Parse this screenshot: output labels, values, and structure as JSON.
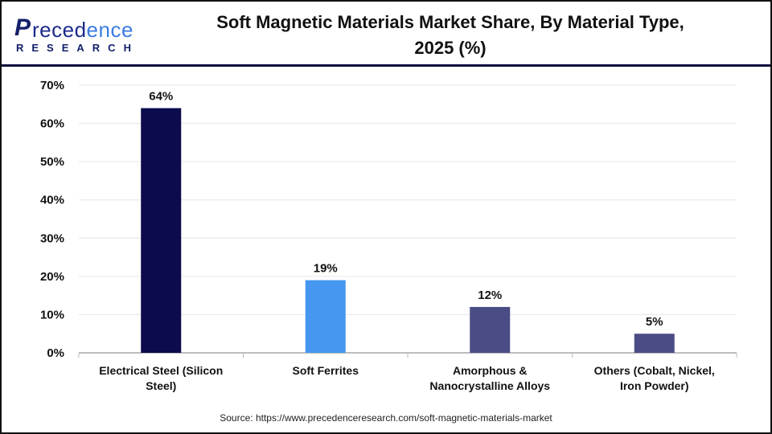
{
  "logo": {
    "text": "Precedence",
    "subtext": "RESEARCH"
  },
  "title_line1": "Soft Magnetic Materials Market Share, By Material Type,",
  "title_line2": "2025 (%)",
  "source": "Source: https://www.precedenceresearch.com/soft-magnetic-materials-market",
  "chart_data": {
    "type": "bar",
    "title": "Soft Magnetic Materials Market Share, By Material Type, 2025 (%)",
    "categories": [
      [
        "Electrical Steel (Silicon",
        "Steel)"
      ],
      [
        "Soft Ferrites"
      ],
      [
        "Amorphous &",
        "Nanocrystalline Alloys"
      ],
      [
        "Others (Cobalt, Nickel,",
        "Iron Powder)"
      ]
    ],
    "values": [
      64,
      19,
      12,
      5
    ],
    "data_labels": [
      "64%",
      "19%",
      "12%",
      "5%"
    ],
    "colors": [
      "#0b0b4d",
      "#4597f0",
      "#4a4d85",
      "#4a4d85"
    ],
    "ylim": [
      0,
      70
    ],
    "yticks": [
      "0%",
      "10%",
      "20%",
      "30%",
      "40%",
      "50%",
      "60%",
      "70%"
    ],
    "grid": true,
    "legend": "none"
  }
}
